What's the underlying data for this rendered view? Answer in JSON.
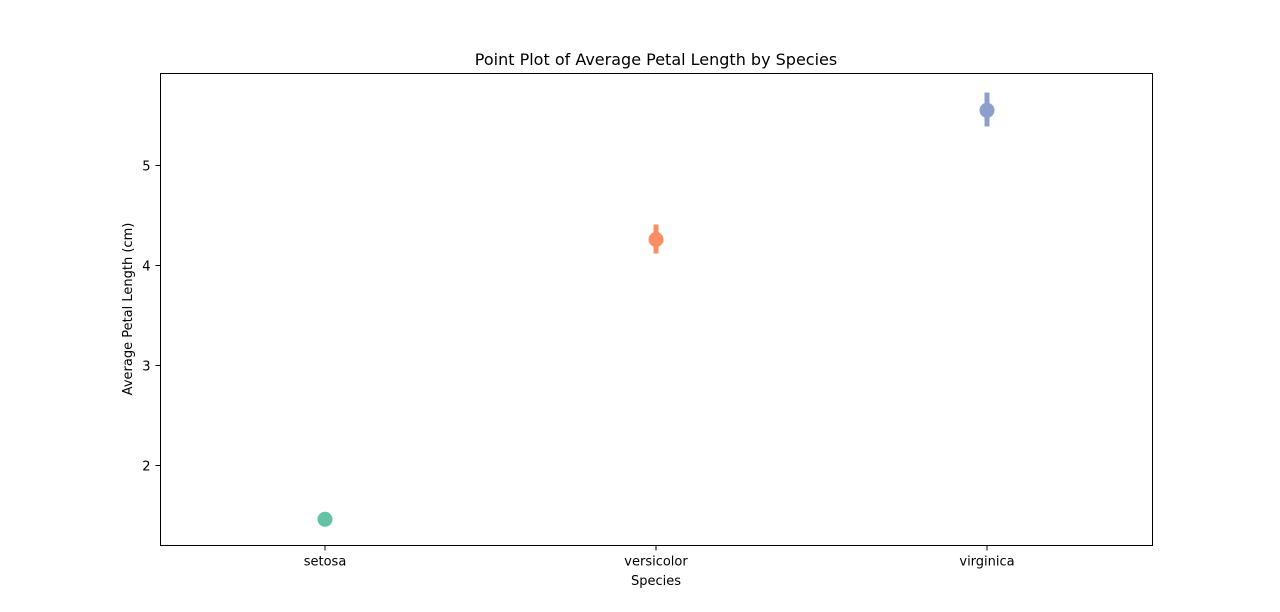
{
  "chart_data": {
    "type": "point",
    "title": "Point Plot of Average Petal Length by Species",
    "xlabel": "Species",
    "ylabel": "Average Petal Length (cm)",
    "categories": [
      "setosa",
      "versicolor",
      "virginica"
    ],
    "values": [
      1.462,
      4.26,
      5.552
    ],
    "error_low": [
      1.42,
      4.12,
      5.39
    ],
    "error_high": [
      1.51,
      4.41,
      5.73
    ],
    "colors": [
      "#66c2a5",
      "#fc8d62",
      "#8da0cb"
    ],
    "ylim": [
      1.2,
      5.92
    ],
    "yticks": [
      2,
      3,
      4,
      5
    ],
    "grid": false
  }
}
